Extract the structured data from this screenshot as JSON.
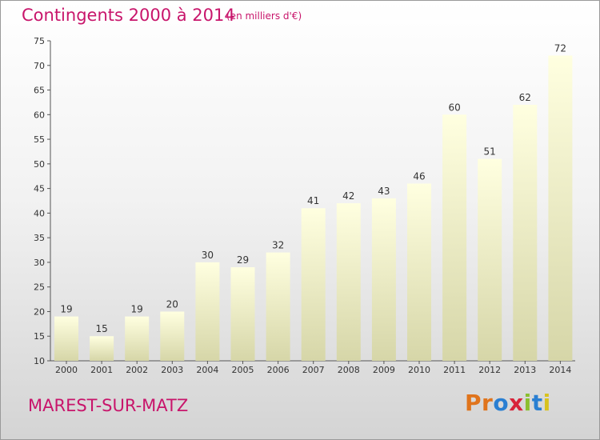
{
  "header": {
    "title": "Contingents 2000 à 2014",
    "subtitle": "(en milliers d'€)"
  },
  "footer": {
    "commune": "MAREST-SUR-MATZ",
    "logo_letters": [
      "P",
      "r",
      "o",
      "x",
      "i",
      "t",
      "i"
    ],
    "logo_colors": [
      "#e0741c",
      "#e0741c",
      "#2a7fd2",
      "#d8233a",
      "#8bbf2f",
      "#2a7fd2",
      "#d8c21f"
    ]
  },
  "colors": {
    "accent": "#c8156b",
    "bar_top": "#ffffe0",
    "bar_bottom": "#d6d6a8"
  },
  "chart_data": {
    "type": "bar",
    "title": "Contingents 2000 à 2014",
    "subtitle": "(en milliers d'€)",
    "categories": [
      "2000",
      "2001",
      "2002",
      "2003",
      "2004",
      "2005",
      "2006",
      "2007",
      "2008",
      "2009",
      "2010",
      "2011",
      "2012",
      "2013",
      "2014"
    ],
    "values": [
      19,
      15,
      19,
      20,
      30,
      29,
      32,
      41,
      42,
      43,
      46,
      60,
      51,
      62,
      72
    ],
    "ylim": [
      10,
      75
    ],
    "yticks": [
      10,
      15,
      20,
      25,
      30,
      35,
      40,
      45,
      50,
      55,
      60,
      65,
      70,
      75
    ],
    "grid": false,
    "legend": "none"
  }
}
